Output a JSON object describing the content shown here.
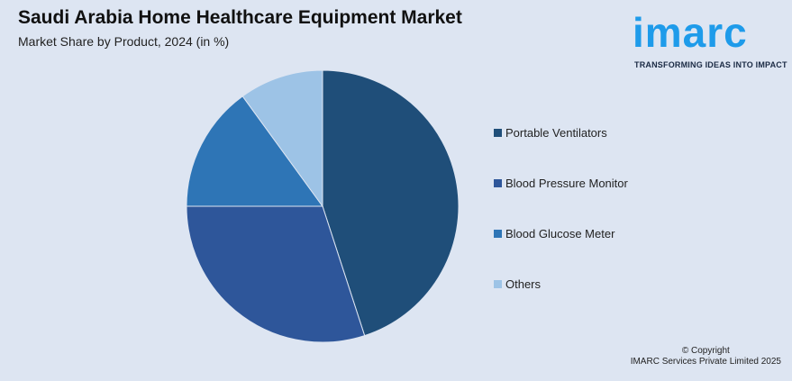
{
  "header": {
    "title": "Saudi Arabia Home Healthcare Equipment Market",
    "subtitle": "Market Share by Product, 2024 (in %)"
  },
  "brand": {
    "name": "imarc",
    "tagline": "TRANSFORMING IDEAS INTO IMPACT",
    "color": "#1e9bea"
  },
  "footer": {
    "copyright_line1": "© Copyright",
    "copyright_line2": "IMARC Services Private Limited 2025"
  },
  "chart_data": {
    "type": "pie",
    "title": "Saudi Arabia Home Healthcare Equipment Market",
    "subtitle": "Market Share by Product, 2024 (in %)",
    "legend_position": "right",
    "categories": [
      "Portable Ventilators",
      "Blood Pressure Monitor",
      "Blood Glucose Meter",
      "Others"
    ],
    "values": [
      45,
      30,
      15,
      10
    ],
    "colors": [
      "#1f4e79",
      "#2e569a",
      "#2e75b6",
      "#9dc3e6"
    ]
  }
}
